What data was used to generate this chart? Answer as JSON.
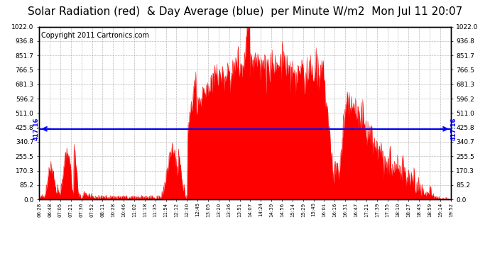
{
  "title": "Solar Radiation (red)  & Day Average (blue)  per Minute W/m2  Mon Jul 11 20:07",
  "copyright": "Copyright 2011 Cartronics.com",
  "avg_value": 417.16,
  "y_max": 1022.0,
  "y_min": 0.0,
  "y_ticks": [
    0.0,
    85.2,
    170.3,
    255.5,
    340.7,
    425.8,
    511.0,
    596.2,
    681.3,
    766.5,
    851.7,
    936.8,
    1022.0
  ],
  "x_labels": [
    "06:28",
    "06:48",
    "07:05",
    "07:21",
    "07:36",
    "07:52",
    "08:11",
    "10:28",
    "10:46",
    "11:02",
    "11:18",
    "11:35",
    "11:54",
    "12:12",
    "12:30",
    "12:45",
    "13:05",
    "13:20",
    "13:36",
    "13:51",
    "14:07",
    "14:24",
    "14:39",
    "14:56",
    "15:14",
    "15:29",
    "15:45",
    "16:01",
    "16:16",
    "16:31",
    "16:47",
    "17:21",
    "17:39",
    "17:55",
    "18:10",
    "18:27",
    "18:43",
    "18:59",
    "19:14",
    "19:52"
  ],
  "bar_color": "#FF0000",
  "line_color": "#0000FF",
  "bg_color": "#FFFFFF",
  "grid_color": "#AAAAAA",
  "title_fontsize": 11,
  "copyright_fontsize": 7
}
